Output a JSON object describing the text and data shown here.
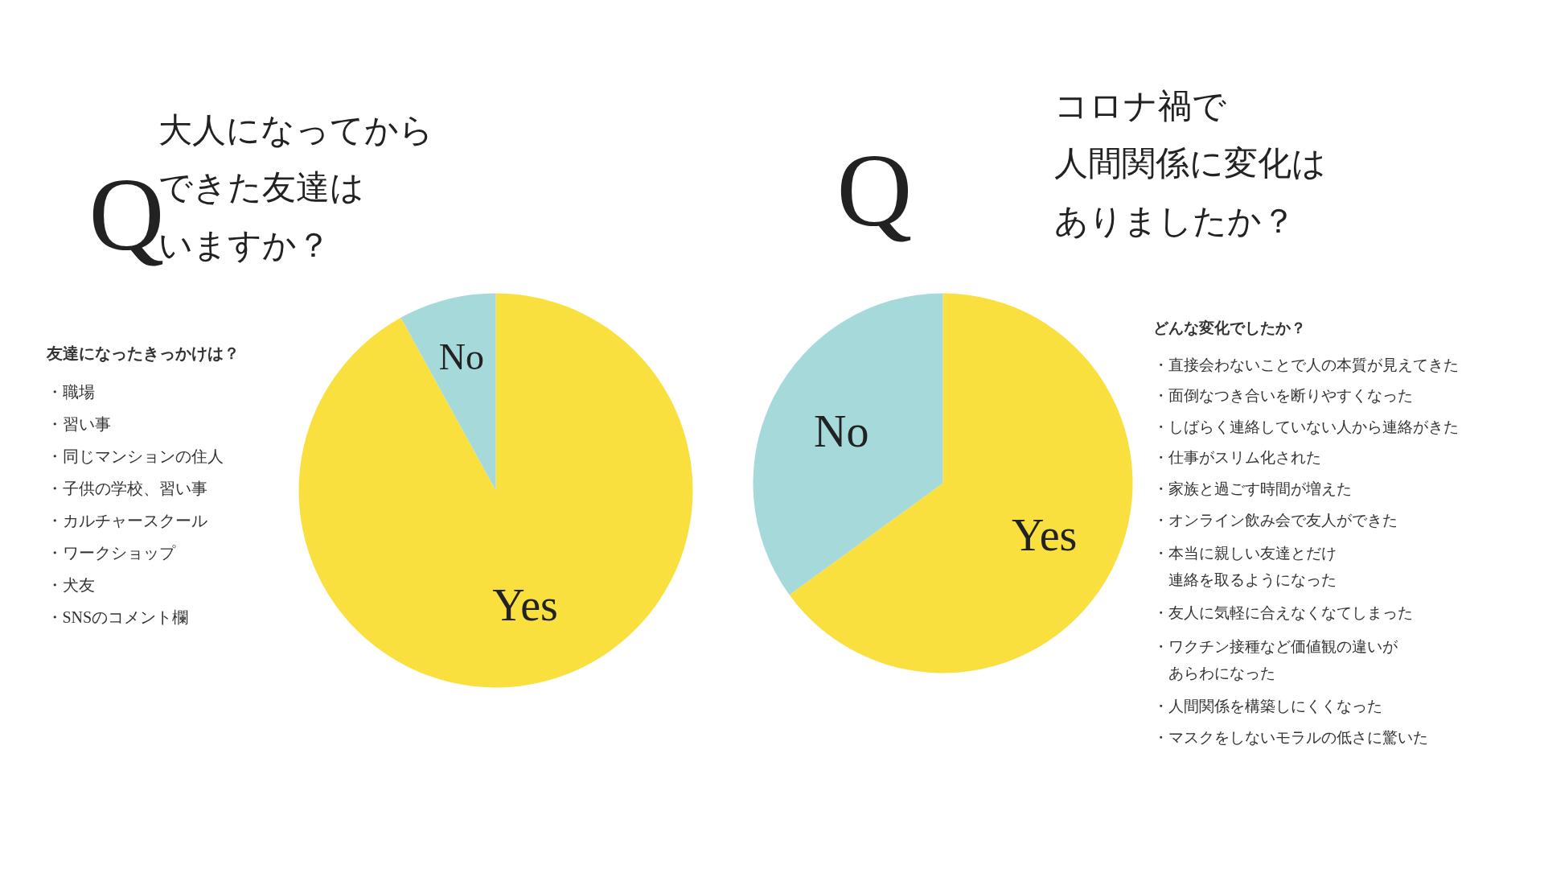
{
  "chart_data": [
    {
      "type": "pie",
      "title": "Q",
      "subtitle": "大人になってからできた友達はいますか？",
      "categories": [
        "Yes",
        "No"
      ],
      "values": [
        92,
        8
      ],
      "colors": [
        "#f9e03f",
        "#a6d9da"
      ],
      "annotations": [
        "友達になったきっかけは？",
        "・職場",
        "・習い事",
        "・同じマンションの住人",
        "・子供の学校、習い事",
        "・カルチャースクール",
        "・ワークショップ",
        "・犬友",
        "・SNSのコメント欄"
      ]
    },
    {
      "type": "pie",
      "title": "Q",
      "subtitle": "コロナ禍で人間関係に変化はありましたか？",
      "categories": [
        "Yes",
        "No"
      ],
      "values": [
        65,
        35
      ],
      "colors": [
        "#f9e03f",
        "#a6d9da"
      ],
      "annotations": [
        "どんな変化でしたか？",
        "・直接会わないことで人の本質が見えてきた",
        "・面倒なつき合いを断りやすくなった",
        "・しばらく連絡していない人から連絡がきた",
        "・仕事がスリム化された",
        "・家族と過ごす時間が増えた",
        "・オンライン飲み会で友人ができた",
        "・本当に親しい友達とだけ連絡を取るようになった",
        "・友人に気軽に合えなくなてしまった",
        "・ワクチン接種など価値観の違いがあらわになった",
        "・人間関係を構築しにくくなった",
        "・マスクをしないモラルの低さに驚いた"
      ]
    }
  ]
}
